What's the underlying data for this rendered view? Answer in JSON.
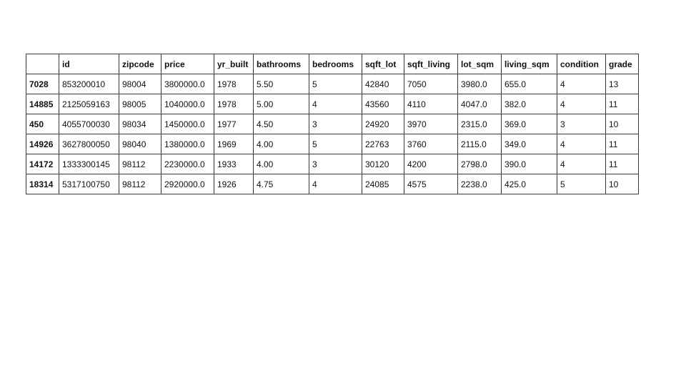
{
  "table": {
    "index_header": "",
    "columns": [
      "id",
      "zipcode",
      "price",
      "yr_built",
      "bathrooms",
      "bedrooms",
      "sqft_lot",
      "sqft_living",
      "lot_sqm",
      "living_sqm",
      "condition",
      "grade"
    ],
    "rows": [
      {
        "index": "7028",
        "cells": [
          "853200010",
          "98004",
          "3800000.0",
          "1978",
          "5.50",
          "5",
          "42840",
          "7050",
          "3980.0",
          "655.0",
          "4",
          "13"
        ]
      },
      {
        "index": "14885",
        "cells": [
          "2125059163",
          "98005",
          "1040000.0",
          "1978",
          "5.00",
          "4",
          "43560",
          "4110",
          "4047.0",
          "382.0",
          "4",
          "11"
        ]
      },
      {
        "index": "450",
        "cells": [
          "4055700030",
          "98034",
          "1450000.0",
          "1977",
          "4.50",
          "3",
          "24920",
          "3970",
          "2315.0",
          "369.0",
          "3",
          "10"
        ]
      },
      {
        "index": "14926",
        "cells": [
          "3627800050",
          "98040",
          "1380000.0",
          "1969",
          "4.00",
          "5",
          "22763",
          "3760",
          "2115.0",
          "349.0",
          "4",
          "11"
        ]
      },
      {
        "index": "14172",
        "cells": [
          "1333300145",
          "98112",
          "2230000.0",
          "1933",
          "4.00",
          "3",
          "30120",
          "4200",
          "2798.0",
          "390.0",
          "4",
          "11"
        ]
      },
      {
        "index": "18314",
        "cells": [
          "5317100750",
          "98112",
          "2920000.0",
          "1926",
          "4.75",
          "4",
          "24085",
          "4575",
          "2238.0",
          "425.0",
          "5",
          "10"
        ]
      }
    ]
  }
}
